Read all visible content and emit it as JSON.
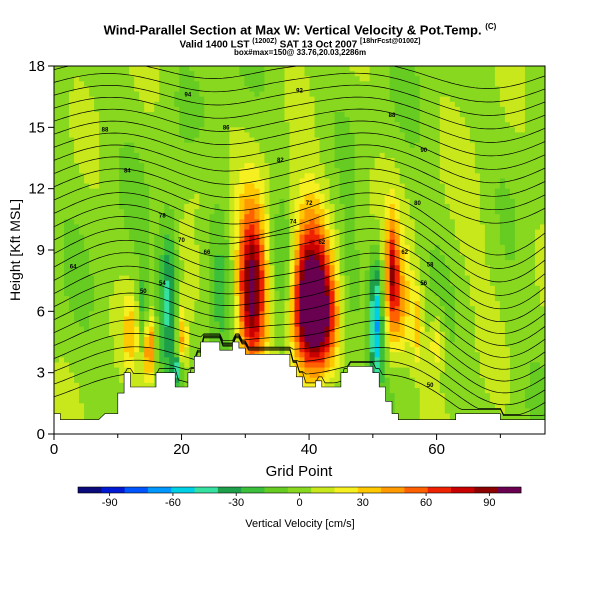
{
  "header": {
    "title": "Wind-Parallel Section at Max W: Vertical Velocity & Pot.Temp.",
    "title_sup": "(C)",
    "valid_pre": "Valid 1400 LST ",
    "valid_sup1": "(1200Z)",
    "valid_mid": " SAT 13 Oct 2007 ",
    "valid_sup2": "[18hrFcst@0100Z]",
    "box_line": "box#max=150@ 33.76,20.03,2286m"
  },
  "chart_data": {
    "type": "heatmap",
    "title": "Wind-Parallel Section at Max W: Vertical Velocity & Pot.Temp.",
    "xlabel": "Grid Point",
    "ylabel": "Height [Kft MSL]",
    "xlim": [
      0,
      77
    ],
    "ylim": [
      0,
      18
    ],
    "xticks": [
      0,
      20,
      40,
      60
    ],
    "yticks": [
      0,
      3,
      6,
      9,
      12,
      15,
      18
    ],
    "colorbar": {
      "label": "Vertical Velocity [cm/s]",
      "ticks": [
        -90,
        -60,
        -30,
        0,
        30,
        60,
        90
      ],
      "range": [
        -105,
        105
      ],
      "colors": [
        "#0a0a7a",
        "#0019d2",
        "#0055ff",
        "#0098ff",
        "#00d0e6",
        "#35e0a0",
        "#1ea04a",
        "#3cc03c",
        "#66cc22",
        "#88d820",
        "#c8e81c",
        "#f6f020",
        "#ffc800",
        "#ff9a00",
        "#ff6000",
        "#ee2200",
        "#c80000",
        "#8c0000",
        "#6a0050"
      ]
    },
    "terrain": [
      [
        0,
        1
      ],
      [
        1,
        1
      ],
      [
        1,
        0.7
      ],
      [
        7,
        0.7
      ],
      [
        7,
        0.7
      ],
      [
        8,
        1
      ],
      [
        10,
        1
      ],
      [
        10,
        2
      ],
      [
        11,
        2
      ],
      [
        11,
        3
      ],
      [
        12,
        3
      ],
      [
        12,
        2.3
      ],
      [
        13,
        2.3
      ],
      [
        13,
        2.3
      ],
      [
        16,
        2.3
      ],
      [
        16,
        3
      ],
      [
        17,
        3
      ],
      [
        18,
        3
      ],
      [
        19,
        3
      ],
      [
        19,
        2.3
      ],
      [
        20,
        2.3
      ],
      [
        20,
        2.3
      ],
      [
        21,
        2.3
      ],
      [
        21,
        3
      ],
      [
        22,
        3
      ],
      [
        22,
        3.8
      ],
      [
        23,
        3.8
      ],
      [
        23,
        4.5
      ],
      [
        24,
        4.5
      ],
      [
        26,
        4.5
      ],
      [
        26,
        4.1
      ],
      [
        27,
        4.1
      ],
      [
        27,
        4.1
      ],
      [
        28,
        4.1
      ],
      [
        28,
        4.5
      ],
      [
        29,
        4.5
      ],
      [
        29,
        4.2
      ],
      [
        30,
        4.2
      ],
      [
        30,
        3.9
      ],
      [
        31,
        3.9
      ],
      [
        31,
        3.9
      ],
      [
        34,
        3.9
      ],
      [
        34,
        3.9
      ],
      [
        37,
        3.9
      ],
      [
        37,
        3.3
      ],
      [
        38,
        3.3
      ],
      [
        38,
        2.8
      ],
      [
        39,
        2.8
      ],
      [
        39,
        2.3
      ],
      [
        40,
        2.3
      ],
      [
        40,
        2.3
      ],
      [
        41,
        2.3
      ],
      [
        41,
        2.6
      ],
      [
        42,
        2.6
      ],
      [
        42,
        2.3
      ],
      [
        43,
        2.3
      ],
      [
        43,
        2.3
      ],
      [
        45,
        2.3
      ],
      [
        45,
        3
      ],
      [
        46,
        3
      ],
      [
        46,
        3.3
      ],
      [
        47,
        3.3
      ],
      [
        50,
        3.3
      ],
      [
        50,
        3
      ],
      [
        51,
        3
      ],
      [
        51,
        2.3
      ],
      [
        52,
        2.3
      ],
      [
        52,
        1.6
      ],
      [
        53,
        1.6
      ],
      [
        53,
        1
      ],
      [
        54,
        1
      ],
      [
        54,
        0.7
      ],
      [
        63,
        0.7
      ],
      [
        63,
        1
      ],
      [
        70,
        1
      ],
      [
        70,
        0.7
      ],
      [
        72,
        0.7
      ],
      [
        72,
        0.7
      ],
      [
        77,
        0.7
      ]
    ],
    "updrafts": [
      {
        "x": 31,
        "y": 7,
        "sx": 1.6,
        "sy": 2.8,
        "w": 105
      },
      {
        "x": 41,
        "y": 5.6,
        "sx": 2.3,
        "sy": 1.9,
        "w": 110
      },
      {
        "x": 40,
        "y": 8.3,
        "sx": 2.0,
        "sy": 2.3,
        "w": 70
      },
      {
        "x": 15,
        "y": 4.2,
        "sx": 0.6,
        "sy": 1.1,
        "w": 60
      },
      {
        "x": 53,
        "y": 8,
        "sx": 0.7,
        "sy": 2.0,
        "w": 55
      },
      {
        "x": 54,
        "y": 6.3,
        "sx": 1.5,
        "sy": 2.0,
        "w": 40
      },
      {
        "x": 57,
        "y": 5.3,
        "sx": 0.6,
        "sy": 1.3,
        "w": 30
      },
      {
        "x": 60,
        "y": 4.5,
        "sx": 0.8,
        "sy": 1.0,
        "w": 25
      },
      {
        "x": 18,
        "y": 6.8,
        "sx": 1.0,
        "sy": 2.6,
        "w": -45
      },
      {
        "x": 12,
        "y": 5,
        "sx": 0.8,
        "sy": 1.3,
        "w": 30
      },
      {
        "x": 14,
        "y": 6.2,
        "sx": 0.6,
        "sy": 1.5,
        "w": -25
      },
      {
        "x": 20,
        "y": 4.5,
        "sx": 0.6,
        "sy": 1.2,
        "w": 45
      },
      {
        "x": 19.5,
        "y": 3.2,
        "sx": 0.5,
        "sy": 0.5,
        "w": -50
      },
      {
        "x": 50.5,
        "y": 5.5,
        "sx": 0.7,
        "sy": 2.2,
        "w": -60
      },
      {
        "x": 36,
        "y": 7.5,
        "sx": 1.3,
        "sy": 3.2,
        "w": -20
      },
      {
        "x": 26,
        "y": 7.5,
        "sx": 1.3,
        "sy": 3.2,
        "w": -15
      },
      {
        "x": 46,
        "y": 7,
        "sx": 1.5,
        "sy": 3.2,
        "w": -20
      },
      {
        "x": 23,
        "y": 12.5,
        "sx": 1.5,
        "sy": 1.5,
        "w": 10
      },
      {
        "x": 35,
        "y": 12,
        "sx": 3,
        "sy": 1.5,
        "w": 8
      },
      {
        "x": 48,
        "y": 11,
        "sx": 3,
        "sy": 2,
        "w": 10
      },
      {
        "x": 66,
        "y": 10,
        "sx": 3,
        "sy": 3,
        "w": 8
      }
    ],
    "contour_labels": [
      {
        "text": "94",
        "x": 21,
        "y": 16.5
      },
      {
        "text": "92",
        "x": 38.5,
        "y": 16.7
      },
      {
        "text": "88",
        "x": 53,
        "y": 15.5
      },
      {
        "text": "90",
        "x": 58,
        "y": 13.8
      },
      {
        "text": "88",
        "x": 8,
        "y": 14.8
      },
      {
        "text": "86",
        "x": 27,
        "y": 14.9
      },
      {
        "text": "84",
        "x": 11.5,
        "y": 12.8
      },
      {
        "text": "82",
        "x": 35.5,
        "y": 13.3
      },
      {
        "text": "80",
        "x": 57,
        "y": 11.2
      },
      {
        "text": "78",
        "x": 17,
        "y": 10.6
      },
      {
        "text": "74",
        "x": 37.5,
        "y": 10.3
      },
      {
        "text": "72",
        "x": 40,
        "y": 11.2
      },
      {
        "text": "70",
        "x": 20,
        "y": 9.4
      },
      {
        "text": "64",
        "x": 3,
        "y": 8.1
      },
      {
        "text": "66",
        "x": 24,
        "y": 8.8
      },
      {
        "text": "62",
        "x": 42,
        "y": 9.3
      },
      {
        "text": "62",
        "x": 55,
        "y": 8.8
      },
      {
        "text": "58",
        "x": 59,
        "y": 8.2
      },
      {
        "text": "56",
        "x": 58,
        "y": 7.3
      },
      {
        "text": "50",
        "x": 14,
        "y": 6.9
      },
      {
        "text": "54",
        "x": 17,
        "y": 7.3
      },
      {
        "text": "50",
        "x": 59,
        "y": 2.3
      }
    ]
  },
  "colorbar_label": "Vertical Velocity [cm/s]"
}
